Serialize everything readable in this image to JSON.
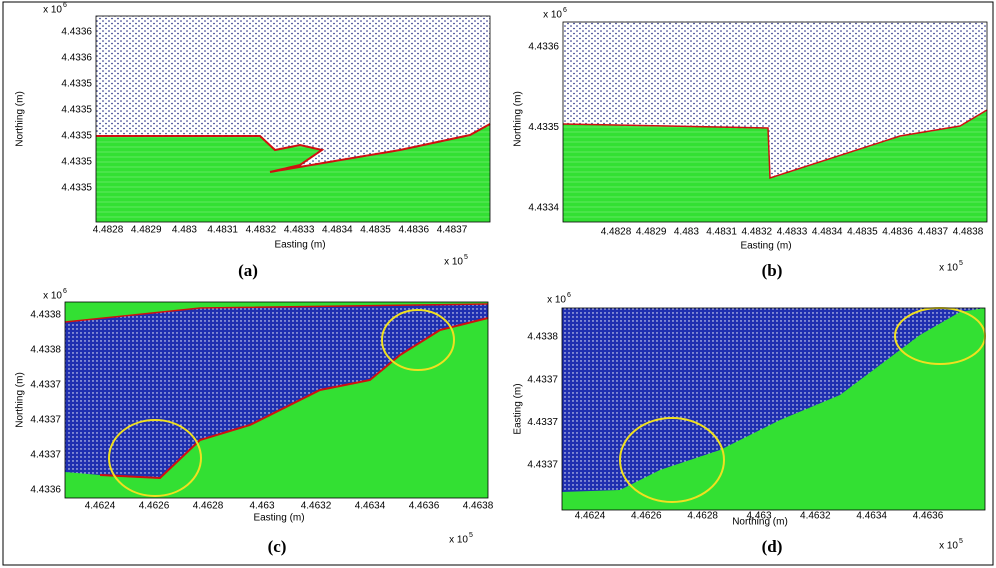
{
  "panels": [
    {
      "label": "(a)",
      "x_axis_label": "Easting (m)",
      "y_axis_label": "Northing (m)",
      "x_multiplier": "x 10",
      "x_exponent": "5",
      "y_multiplier": "x 10",
      "y_exponent": "6",
      "x_tick_labels": [
        "4.4828",
        "4.4829",
        "4.483",
        "4.4831",
        "4.4832",
        "4.4833",
        "4.4834",
        "4.4835",
        "4.4836",
        "4.4837"
      ],
      "y_tick_labels": [
        "4.4336",
        "4.4336",
        "4.4335",
        "4.4335",
        "4.4335",
        "4.4335",
        "4.4335"
      ]
    },
    {
      "label": "(b)",
      "x_axis_label": "Easting (m)",
      "y_axis_label": "Northing (m)",
      "x_multiplier": "x 10",
      "x_exponent": "5",
      "y_multiplier": "x 10",
      "y_exponent": "6",
      "x_tick_labels": [
        "4.4828",
        "4.4829",
        "4.483",
        "4.4831",
        "4.4832",
        "4.4833",
        "4.4834",
        "4.4835",
        "4.4836",
        "4.4837",
        "4.4838"
      ],
      "y_tick_labels": [
        "4.4336",
        "4.4335",
        "4.4334"
      ]
    },
    {
      "label": "(c)",
      "x_axis_label": "Easting (m)",
      "y_axis_label": "Northing (m)",
      "x_multiplier": "x 10",
      "x_exponent": "5",
      "y_multiplier": "x 10",
      "y_exponent": "6",
      "x_tick_labels": [
        "4.4624",
        "4.4626",
        "4.4628",
        "4.463",
        "4.4632",
        "4.4634",
        "4.4636",
        "4.4638"
      ],
      "y_tick_labels": [
        "4.4338",
        "4.4338",
        "4.4337",
        "4.4337",
        "4.4337",
        "4.4336"
      ]
    },
    {
      "label": "(d)",
      "x_axis_label": "Northing (m)",
      "y_axis_label": "Easting (m)",
      "x_multiplier": "x 10",
      "x_exponent": "5",
      "y_multiplier": "x 10",
      "y_exponent": "6",
      "x_tick_labels": [
        "4.4624",
        "4.4626",
        "4.4628",
        "4.463",
        "4.4632",
        "4.4634",
        "4.4636"
      ],
      "y_tick_labels": [
        "4.4338",
        "4.4337",
        "4.4337",
        "4.4337"
      ]
    }
  ]
}
